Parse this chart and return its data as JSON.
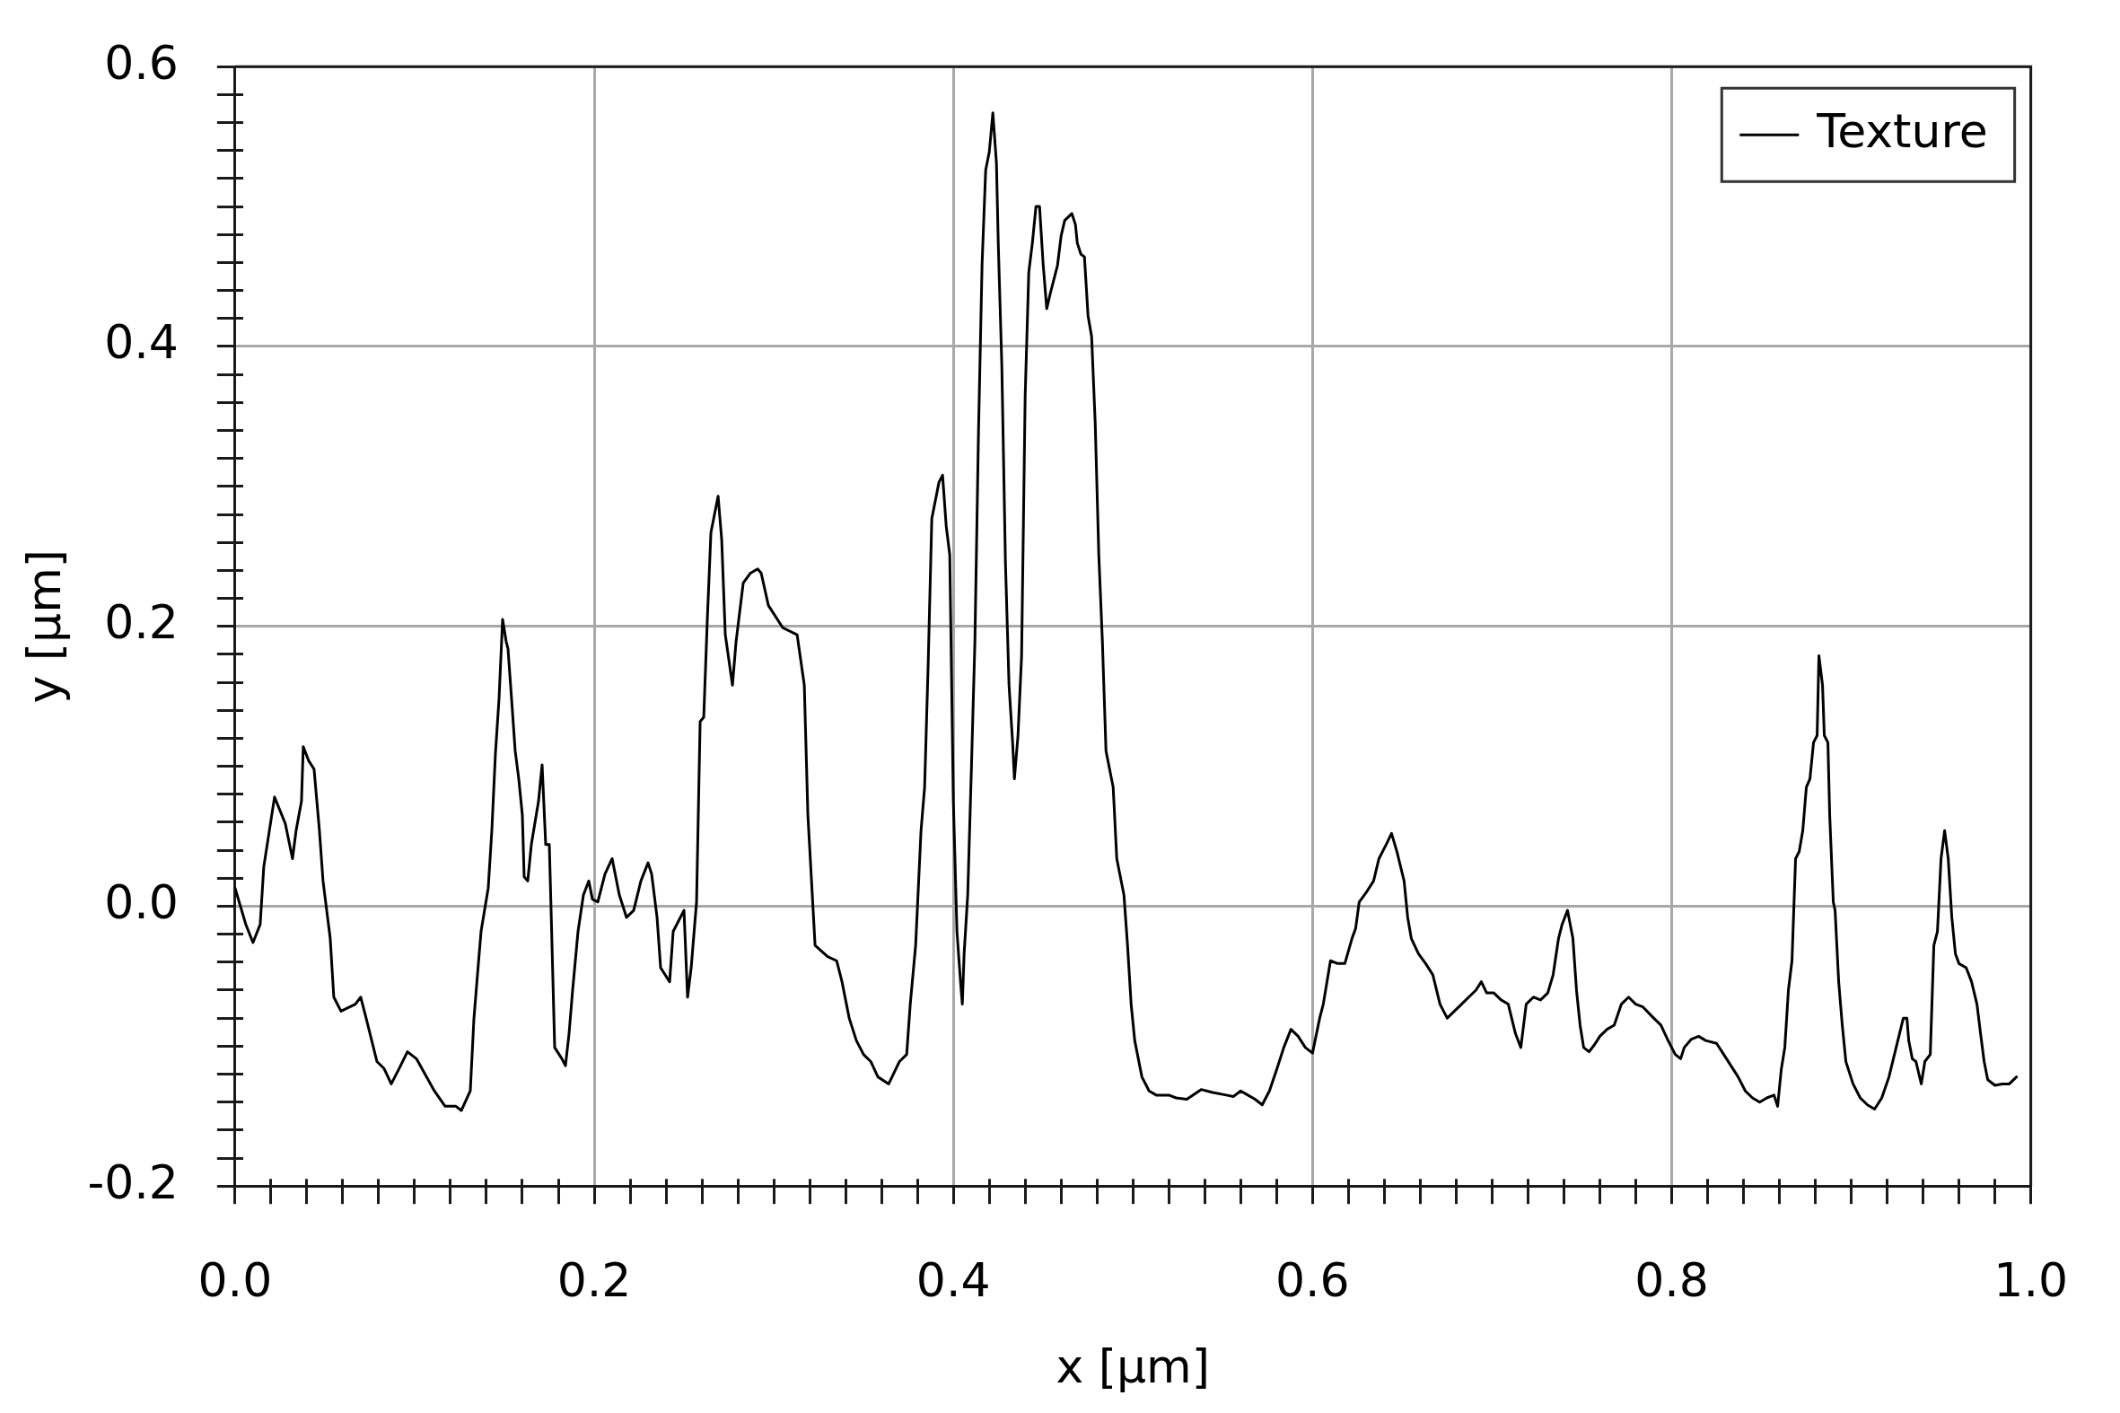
{
  "chart_data": {
    "type": "line",
    "xlabel": "x [µm]",
    "ylabel": "y [µm]",
    "xlim": [
      0,
      1
    ],
    "ylim": [
      -0.2,
      0.6
    ],
    "xticks": [
      {
        "value": 0,
        "label": "0.0"
      },
      {
        "value": 0.02,
        "label": null
      },
      {
        "value": 0.04,
        "label": null
      },
      {
        "value": 0.06,
        "label": null
      },
      {
        "value": 0.08,
        "label": null
      },
      {
        "value": 0.1,
        "label": null
      },
      {
        "value": 0.12,
        "label": null
      },
      {
        "value": 0.14,
        "label": null
      },
      {
        "value": 0.16,
        "label": null
      },
      {
        "value": 0.18,
        "label": null
      },
      0.2,
      {
        "value": 0.22,
        "label": null
      },
      {
        "value": 0.24,
        "label": null
      },
      {
        "value": 0.26,
        "label": null
      },
      {
        "value": 0.28,
        "label": null
      },
      {
        "value": 0.3,
        "label": null
      },
      {
        "value": 0.32,
        "label": null
      },
      {
        "value": 0.34,
        "label": null
      },
      {
        "value": 0.36,
        "label": null
      },
      {
        "value": 0.38,
        "label": null
      },
      0.4,
      {
        "value": 0.42,
        "label": null
      },
      {
        "value": 0.44,
        "label": null
      },
      {
        "value": 0.46,
        "label": null
      },
      {
        "value": 0.48,
        "label": null
      },
      {
        "value": 0.5,
        "label": null
      },
      {
        "value": 0.52,
        "label": null
      },
      {
        "value": 0.54,
        "label": null
      },
      {
        "value": 0.56,
        "label": null
      },
      {
        "value": 0.58,
        "label": null
      },
      0.6,
      {
        "value": 0.62,
        "label": null
      },
      {
        "value": 0.64,
        "label": null
      },
      {
        "value": 0.66,
        "label": null
      },
      {
        "value": 0.68,
        "label": null
      },
      {
        "value": 0.7,
        "label": null
      },
      {
        "value": 0.72,
        "label": null
      },
      {
        "value": 0.74,
        "label": null
      },
      {
        "value": 0.76,
        "label": null
      },
      {
        "value": 0.78,
        "label": null
      },
      0.8,
      {
        "value": 0.82,
        "label": null
      },
      {
        "value": 0.84,
        "label": null
      },
      {
        "value": 0.86,
        "label": null
      },
      {
        "value": 0.88,
        "label": null
      },
      {
        "value": 0.9,
        "label": null
      },
      {
        "value": 0.92,
        "label": null
      },
      {
        "value": 0.94,
        "label": null
      },
      {
        "value": 0.96,
        "label": null
      },
      {
        "value": 0.98,
        "label": null
      },
      {
        "value": 1,
        "label": "1.0"
      }
    ],
    "yticks": [
      -0.2,
      {
        "value": -0.18,
        "label": null
      },
      {
        "value": -0.16,
        "label": null
      },
      {
        "value": -0.14,
        "label": null
      },
      {
        "value": -0.12,
        "label": null
      },
      {
        "value": -0.1,
        "label": null
      },
      {
        "value": -0.08,
        "label": null
      },
      {
        "value": -0.06,
        "label": null
      },
      {
        "value": -0.04,
        "label": null
      },
      {
        "value": -0.02,
        "label": null
      },
      {
        "value": 0,
        "label": "0.0"
      },
      {
        "value": 0.02,
        "label": null
      },
      {
        "value": 0.04,
        "label": null
      },
      {
        "value": 0.06,
        "label": null
      },
      {
        "value": 0.08,
        "label": null
      },
      {
        "value": 0.1,
        "label": null
      },
      {
        "value": 0.12,
        "label": null
      },
      {
        "value": 0.14,
        "label": null
      },
      {
        "value": 0.16,
        "label": null
      },
      {
        "value": 0.18,
        "label": null
      },
      0.2,
      {
        "value": 0.22,
        "label": null
      },
      {
        "value": 0.24,
        "label": null
      },
      {
        "value": 0.26,
        "label": null
      },
      {
        "value": 0.28,
        "label": null
      },
      {
        "value": 0.3,
        "label": null
      },
      {
        "value": 0.32,
        "label": null
      },
      {
        "value": 0.34,
        "label": null
      },
      {
        "value": 0.36,
        "label": null
      },
      {
        "value": 0.38,
        "label": null
      },
      0.4,
      {
        "value": 0.42,
        "label": null
      },
      {
        "value": 0.44,
        "label": null
      },
      {
        "value": 0.46,
        "label": null
      },
      {
        "value": 0.48,
        "label": null
      },
      {
        "value": 0.5,
        "label": null
      },
      {
        "value": 0.52,
        "label": null
      },
      {
        "value": 0.54,
        "label": null
      },
      {
        "value": 0.56,
        "label": null
      },
      {
        "value": 0.58,
        "label": null
      },
      0.6
    ],
    "grid": true,
    "legend": "top right",
    "marker": "none",
    "line_style": "solid",
    "x": [
      0,
      0.006,
      0.01,
      0.014,
      0.016,
      0.022,
      0.028,
      0.032,
      0.034,
      0.037,
      0.038,
      0.041,
      0.044,
      0.047,
      0.049,
      0.053,
      0.055,
      0.059,
      0.067,
      0.07,
      0.073,
      0.079,
      0.083,
      0.087,
      0.091,
      0.096,
      0.101,
      0.111,
      0.117,
      0.123,
      0.126,
      0.131,
      0.133,
      0.135,
      0.137,
      0.141,
      0.143,
      0.145,
      0.147,
      0.149,
      0.151,
      0.152,
      0.154,
      0.156,
      0.158,
      0.16,
      0.161,
      0.163,
      0.165,
      0.169,
      0.171,
      0.173,
      0.175,
      0.176,
      0.178,
      0.182,
      0.184,
      0.186,
      0.188,
      0.191,
      0.194,
      0.197,
      0.199,
      0.202,
      0.206,
      0.21,
      0.214,
      0.218,
      0.222,
      0.226,
      0.23,
      0.232,
      0.235,
      0.237,
      0.242,
      0.244,
      0.25,
      0.252,
      0.254,
      0.257,
      0.259,
      0.261,
      0.263,
      0.265,
      0.269,
      0.271,
      0.273,
      0.277,
      0.279,
      0.283,
      0.287,
      0.291,
      0.293,
      0.297,
      0.305,
      0.313,
      0.317,
      0.319,
      0.323,
      0.33,
      0.335,
      0.338,
      0.342,
      0.346,
      0.35,
      0.354,
      0.358,
      0.364,
      0.37,
      0.374,
      0.376,
      0.379,
      0.382,
      0.384,
      0.386,
      0.388,
      0.392,
      0.394,
      0.396,
      0.398,
      0.399,
      0.4,
      0.402,
      0.404,
      0.405,
      0.406,
      0.408,
      0.41,
      0.412,
      0.414,
      0.416,
      0.418,
      0.42,
      0.422,
      0.424,
      0.425,
      0.427,
      0.429,
      0.431,
      0.433,
      0.434,
      0.436,
      0.438,
      0.44,
      0.442,
      0.444,
      0.446,
      0.448,
      0.45,
      0.452,
      0.454,
      0.458,
      0.46,
      0.462,
      0.466,
      0.468,
      0.469,
      0.471,
      0.473,
      0.475,
      0.477,
      0.479,
      0.481,
      0.483,
      0.485,
      0.489,
      0.491,
      0.495,
      0.497,
      0.499,
      0.501,
      0.505,
      0.509,
      0.513,
      0.517,
      0.52,
      0.524,
      0.53,
      0.538,
      0.544,
      0.552,
      0.556,
      0.56,
      0.564,
      0.568,
      0.572,
      0.576,
      0.58,
      0.584,
      0.588,
      0.592,
      0.596,
      0.6,
      0.604,
      0.606,
      0.61,
      0.614,
      0.618,
      0.622,
      0.624,
      0.626,
      0.63,
      0.634,
      0.637,
      0.641,
      0.644,
      0.647,
      0.651,
      0.653,
      0.655,
      0.659,
      0.663,
      0.667,
      0.671,
      0.675,
      0.679,
      0.683,
      0.687,
      0.691,
      0.694,
      0.697,
      0.701,
      0.705,
      0.709,
      0.713,
      0.716,
      0.719,
      0.723,
      0.727,
      0.731,
      0.734,
      0.737,
      0.739,
      0.742,
      0.745,
      0.747,
      0.749,
      0.751,
      0.754,
      0.757,
      0.76,
      0.764,
      0.768,
      0.772,
      0.776,
      0.78,
      0.784,
      0.79,
      0.794,
      0.798,
      0.802,
      0.805,
      0.807,
      0.811,
      0.815,
      0.819,
      0.825,
      0.829,
      0.833,
      0.837,
      0.841,
      0.845,
      0.849,
      0.853,
      0.857,
      0.859,
      0.861,
      0.863,
      0.865,
      0.867,
      0.869,
      0.871,
      0.873,
      0.875,
      0.877,
      0.879,
      0.881,
      0.882,
      0.884,
      0.885,
      0.887,
      0.888,
      0.89,
      0.891,
      0.893,
      0.895,
      0.897,
      0.901,
      0.905,
      0.909,
      0.913,
      0.917,
      0.921,
      0.925,
      0.929,
      0.931,
      0.932,
      0.934,
      0.936,
      0.939,
      0.941,
      0.944,
      0.946,
      0.948,
      0.95,
      0.952,
      0.954,
      0.956,
      0.958,
      0.96,
      0.964,
      0.967,
      0.97,
      0.972,
      0.974,
      0.976,
      0.98,
      0.984,
      0.988,
      0.992
    ],
    "series": [
      {
        "name": "Texture",
        "color": "#000000",
        "values": [
          0.013,
          -0.013,
          -0.026,
          -0.013,
          0.028,
          0.078,
          0.059,
          0.034,
          0.054,
          0.075,
          0.114,
          0.104,
          0.098,
          0.054,
          0.018,
          -0.023,
          -0.065,
          -0.075,
          -0.07,
          -0.065,
          -0.08,
          -0.111,
          -0.116,
          -0.127,
          -0.117,
          -0.104,
          -0.109,
          -0.132,
          -0.143,
          -0.143,
          -0.146,
          -0.132,
          -0.081,
          -0.049,
          -0.018,
          0.013,
          0.054,
          0.109,
          0.148,
          0.205,
          0.189,
          0.184,
          0.148,
          0.111,
          0.091,
          0.065,
          0.021,
          0.018,
          0.044,
          0.075,
          0.101,
          0.044,
          0.044,
          -0.003,
          -0.101,
          -0.109,
          -0.114,
          -0.091,
          -0.06,
          -0.018,
          0.008,
          0.018,
          0.005,
          0.003,
          0.023,
          0.034,
          0.008,
          -0.008,
          -0.003,
          0.018,
          0.031,
          0.023,
          -0.008,
          -0.044,
          -0.054,
          -0.018,
          -0.003,
          -0.065,
          -0.044,
          0.003,
          0.132,
          0.135,
          0.205,
          0.267,
          0.293,
          0.262,
          0.194,
          0.158,
          0.189,
          0.231,
          0.238,
          0.241,
          0.238,
          0.215,
          0.199,
          0.194,
          0.158,
          0.065,
          -0.028,
          -0.036,
          -0.039,
          -0.054,
          -0.08,
          -0.096,
          -0.106,
          -0.111,
          -0.122,
          -0.127,
          -0.111,
          -0.106,
          -0.07,
          -0.028,
          0.054,
          0.085,
          0.174,
          0.277,
          0.303,
          0.308,
          0.272,
          0.251,
          0.163,
          0.075,
          -0.018,
          -0.054,
          -0.07,
          -0.034,
          0.008,
          0.096,
          0.189,
          0.339,
          0.459,
          0.526,
          0.539,
          0.567,
          0.531,
          0.474,
          0.386,
          0.246,
          0.158,
          0.117,
          0.091,
          0.122,
          0.179,
          0.365,
          0.453,
          0.474,
          0.5,
          0.5,
          0.459,
          0.427,
          0.438,
          0.458,
          0.479,
          0.49,
          0.495,
          0.487,
          0.474,
          0.466,
          0.464,
          0.422,
          0.407,
          0.345,
          0.251,
          0.189,
          0.111,
          0.085,
          0.034,
          0.008,
          -0.028,
          -0.07,
          -0.096,
          -0.122,
          -0.132,
          -0.135,
          -0.135,
          -0.135,
          -0.137,
          -0.138,
          -0.131,
          -0.133,
          -0.135,
          -0.136,
          -0.132,
          -0.135,
          -0.138,
          -0.142,
          -0.132,
          -0.117,
          -0.101,
          -0.088,
          -0.093,
          -0.101,
          -0.105,
          -0.08,
          -0.07,
          -0.039,
          -0.041,
          -0.041,
          -0.023,
          -0.016,
          0.003,
          0.01,
          0.018,
          0.034,
          0.044,
          0.052,
          0.039,
          0.018,
          -0.008,
          -0.023,
          -0.034,
          -0.041,
          -0.049,
          -0.07,
          -0.08,
          -0.075,
          -0.07,
          -0.065,
          -0.06,
          -0.054,
          -0.062,
          -0.062,
          -0.067,
          -0.07,
          -0.091,
          -0.101,
          -0.07,
          -0.065,
          -0.067,
          -0.062,
          -0.049,
          -0.023,
          -0.013,
          -0.003,
          -0.023,
          -0.06,
          -0.085,
          -0.101,
          -0.104,
          -0.099,
          -0.093,
          -0.088,
          -0.085,
          -0.07,
          -0.065,
          -0.07,
          -0.072,
          -0.08,
          -0.085,
          -0.096,
          -0.106,
          -0.109,
          -0.101,
          -0.095,
          -0.093,
          -0.096,
          -0.098,
          -0.106,
          -0.114,
          -0.122,
          -0.132,
          -0.137,
          -0.14,
          -0.137,
          -0.135,
          -0.143,
          -0.117,
          -0.101,
          -0.06,
          -0.039,
          0.034,
          0.039,
          0.054,
          0.085,
          0.091,
          0.117,
          0.122,
          0.179,
          0.158,
          0.122,
          0.117,
          0.065,
          0.003,
          -0.003,
          -0.054,
          -0.085,
          -0.111,
          -0.127,
          -0.137,
          -0.142,
          -0.145,
          -0.137,
          -0.122,
          -0.101,
          -0.08,
          -0.08,
          -0.096,
          -0.109,
          -0.111,
          -0.127,
          -0.111,
          -0.106,
          -0.028,
          -0.018,
          0.034,
          0.054,
          0.034,
          -0.008,
          -0.034,
          -0.041,
          -0.044,
          -0.054,
          -0.07,
          -0.091,
          -0.111,
          -0.124,
          -0.128,
          -0.127,
          -0.127,
          -0.122
        ]
      }
    ]
  }
}
